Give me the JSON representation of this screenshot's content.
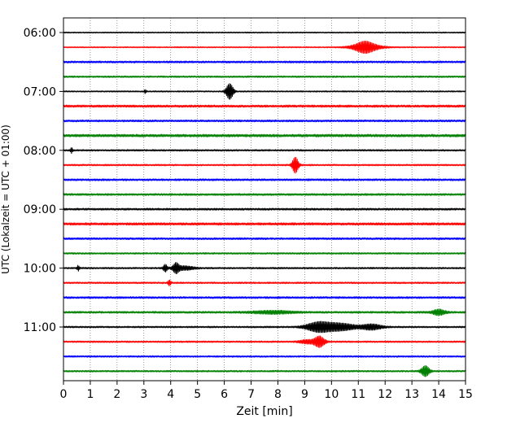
{
  "chart_data": {
    "type": "line",
    "title": "",
    "xlabel": "Zeit  [min]",
    "ylabel": "UTC (Lokalzeit = UTC + 01:00)",
    "xlim": [
      0,
      15
    ],
    "x_ticks": [
      "0",
      "1",
      "2",
      "3",
      "4",
      "5",
      "6",
      "7",
      "8",
      "9",
      "10",
      "11",
      "12",
      "13",
      "14",
      "15"
    ],
    "y_tick_labels": [
      "06:00",
      "07:00",
      "08:00",
      "09:00",
      "10:00",
      "11:00"
    ],
    "grid": "vertical dotted at each minute",
    "legend": "none",
    "colors": [
      "#000000",
      "#ff0000",
      "#0000ff",
      "#008000"
    ],
    "traces": [
      {
        "start": "06:00",
        "color": "#000000",
        "amp": 0.7,
        "events": []
      },
      {
        "start": "06:15",
        "color": "#ff0000",
        "amp": 0.7,
        "events": [
          {
            "t": 11.25,
            "a": 4.5,
            "w": 0.9
          },
          {
            "t": 11.3,
            "a": 2.5,
            "w": 1.6
          }
        ]
      },
      {
        "start": "06:30",
        "color": "#0000ff",
        "amp": 1.2,
        "events": []
      },
      {
        "start": "06:45",
        "color": "#008000",
        "amp": 1.0,
        "events": []
      },
      {
        "start": "07:00",
        "color": "#000000",
        "amp": 0.8,
        "events": [
          {
            "t": 6.2,
            "a": 9,
            "w": 0.35
          },
          {
            "t": 3.05,
            "a": 2,
            "w": 0.1
          }
        ]
      },
      {
        "start": "07:15",
        "color": "#ff0000",
        "amp": 1.4,
        "events": []
      },
      {
        "start": "07:30",
        "color": "#0000ff",
        "amp": 1.2,
        "events": []
      },
      {
        "start": "07:45",
        "color": "#008000",
        "amp": 1.6,
        "events": []
      },
      {
        "start": "08:00",
        "color": "#000000",
        "amp": 1.0,
        "events": [
          {
            "t": 0.3,
            "a": 3,
            "w": 0.1
          }
        ]
      },
      {
        "start": "08:15",
        "color": "#ff0000",
        "amp": 1.0,
        "events": [
          {
            "t": 8.65,
            "a": 9,
            "w": 0.3
          }
        ]
      },
      {
        "start": "08:30",
        "color": "#0000ff",
        "amp": 1.2,
        "events": []
      },
      {
        "start": "08:45",
        "color": "#008000",
        "amp": 1.2,
        "events": []
      },
      {
        "start": "09:00",
        "color": "#000000",
        "amp": 1.2,
        "events": []
      },
      {
        "start": "09:15",
        "color": "#ff0000",
        "amp": 1.5,
        "events": []
      },
      {
        "start": "09:30",
        "color": "#0000ff",
        "amp": 1.2,
        "events": []
      },
      {
        "start": "09:45",
        "color": "#008000",
        "amp": 1.0,
        "events": []
      },
      {
        "start": "10:00",
        "color": "#000000",
        "amp": 1.0,
        "events": [
          {
            "t": 0.55,
            "a": 3,
            "w": 0.1
          },
          {
            "t": 3.8,
            "a": 4,
            "w": 0.2
          },
          {
            "t": 4.2,
            "a": 5,
            "w": 0.3
          },
          {
            "t": 4.5,
            "a": 2,
            "w": 1.0
          }
        ]
      },
      {
        "start": "10:15",
        "color": "#ff0000",
        "amp": 1.0,
        "events": [
          {
            "t": 3.95,
            "a": 3,
            "w": 0.15
          }
        ]
      },
      {
        "start": "10:30",
        "color": "#0000ff",
        "amp": 1.2,
        "events": []
      },
      {
        "start": "10:45",
        "color": "#008000",
        "amp": 1.2,
        "events": [
          {
            "t": 14.0,
            "a": 3,
            "w": 0.6
          },
          {
            "t": 7.8,
            "a": 1.5,
            "w": 2.0
          }
        ]
      },
      {
        "start": "11:00",
        "color": "#000000",
        "amp": 1.0,
        "events": [
          {
            "t": 9.5,
            "a": 5,
            "w": 1.2
          },
          {
            "t": 10.3,
            "a": 4,
            "w": 1.6
          },
          {
            "t": 11.5,
            "a": 3,
            "w": 1.0
          }
        ]
      },
      {
        "start": "11:15",
        "color": "#ff0000",
        "amp": 1.0,
        "events": [
          {
            "t": 9.55,
            "a": 6,
            "w": 0.5
          },
          {
            "t": 9.1,
            "a": 2,
            "w": 0.8
          }
        ]
      },
      {
        "start": "11:30",
        "color": "#0000ff",
        "amp": 1.0,
        "events": []
      },
      {
        "start": "11:45",
        "color": "#008000",
        "amp": 1.0,
        "events": [
          {
            "t": 13.5,
            "a": 6,
            "w": 0.4
          }
        ]
      }
    ]
  }
}
